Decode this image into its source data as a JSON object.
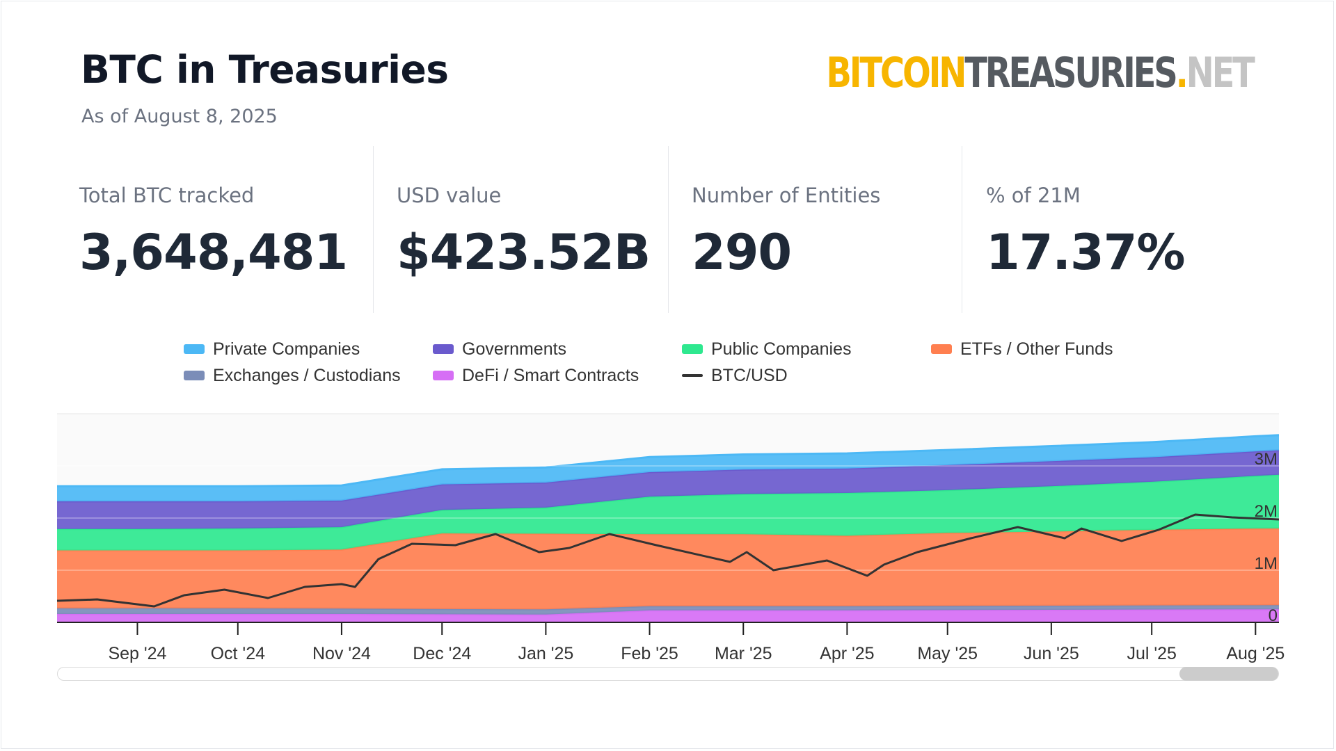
{
  "header": {
    "title": "BTC in Treasuries",
    "subtitle": "As of August 8, 2025",
    "logo": {
      "part1": "BITCOIN",
      "part2": "TREASURIES",
      "part3": ".",
      "part4": "NET"
    }
  },
  "stats": [
    {
      "label": "Total BTC tracked",
      "value": "3,648,481"
    },
    {
      "label": "USD value",
      "value": "$423.52B"
    },
    {
      "label": "Number of Entities",
      "value": "290"
    },
    {
      "label": "% of 21M",
      "value": "17.37%"
    }
  ],
  "legend": [
    {
      "label": "Private Companies",
      "color": "#4cb8f5"
    },
    {
      "label": "Governments",
      "color": "#6a5acd"
    },
    {
      "label": "Public Companies",
      "color": "#2ee88f"
    },
    {
      "label": "ETFs / Other Funds",
      "color": "#ff7f50"
    },
    {
      "label": "Exchanges / Custodians",
      "color": "#7b8db8"
    },
    {
      "label": "DeFi / Smart Contracts",
      "color": "#d66ef5"
    },
    {
      "label": "BTC/USD",
      "color": "#333333"
    }
  ],
  "chart_data": {
    "type": "area",
    "stacked": true,
    "x": [
      "2024-08-08",
      "2024-09-01",
      "2024-10-01",
      "2024-11-01",
      "2024-12-01",
      "2025-01-01",
      "2025-02-01",
      "2025-03-01",
      "2025-04-01",
      "2025-05-01",
      "2025-06-01",
      "2025-07-01",
      "2025-08-01",
      "2025-08-08"
    ],
    "x_tick_labels": [
      "Sep '24",
      "Oct '24",
      "Nov '24",
      "Dec '24",
      "Jan '25",
      "Feb '25",
      "Mar '25",
      "Apr '25",
      "May '25",
      "Jun '25",
      "Jul '25",
      "Aug '25"
    ],
    "y_tick_labels": [
      "0",
      "1M",
      "2M",
      "3M"
    ],
    "ylim": [
      0,
      4000000
    ],
    "series": [
      {
        "name": "DeFi / Smart Contracts",
        "color": "#d66ef5",
        "values": [
          160000,
          160000,
          160000,
          160000,
          155000,
          150000,
          230000,
          230000,
          230000,
          235000,
          240000,
          245000,
          248000,
          250000
        ]
      },
      {
        "name": "Exchanges / Custodians",
        "color": "#7b8db8",
        "values": [
          110000,
          110000,
          110000,
          105000,
          100000,
          100000,
          80000,
          80000,
          80000,
          80000,
          80000,
          80000,
          80000,
          80000
        ]
      },
      {
        "name": "ETFs / Other Funds",
        "color": "#ff7f50",
        "values": [
          1110000,
          1110000,
          1110000,
          1130000,
          1450000,
          1450000,
          1380000,
          1380000,
          1350000,
          1400000,
          1420000,
          1450000,
          1470000,
          1470000
        ]
      },
      {
        "name": "Public Companies",
        "color": "#2ee88f",
        "values": [
          410000,
          410000,
          420000,
          430000,
          450000,
          500000,
          720000,
          770000,
          820000,
          820000,
          870000,
          920000,
          1010000,
          1030000
        ]
      },
      {
        "name": "Governments",
        "color": "#6a5acd",
        "values": [
          530000,
          530000,
          520000,
          510000,
          490000,
          480000,
          470000,
          470000,
          470000,
          480000,
          480000,
          470000,
          470000,
          470000
        ]
      },
      {
        "name": "Private Companies",
        "color": "#4cb8f5",
        "values": [
          290000,
          290000,
          290000,
          290000,
          290000,
          290000,
          290000,
          290000,
          290000,
          290000,
          290000,
          290000,
          290000,
          290000
        ]
      }
    ],
    "btc_usd": {
      "name": "BTC/USD",
      "color": "#333333",
      "x": [
        "2024-08-08",
        "2024-08-20",
        "2024-09-06",
        "2024-09-15",
        "2024-09-27",
        "2024-10-10",
        "2024-10-21",
        "2024-11-01",
        "2024-11-05",
        "2024-11-12",
        "2024-11-22",
        "2024-12-05",
        "2024-12-17",
        "2024-12-30",
        "2025-01-08",
        "2025-01-20",
        "2025-02-03",
        "2025-02-25",
        "2025-03-02",
        "2025-03-10",
        "2025-03-26",
        "2025-04-07",
        "2025-04-12",
        "2025-04-22",
        "2025-05-08",
        "2025-05-22",
        "2025-06-05",
        "2025-06-10",
        "2025-06-22",
        "2025-07-03",
        "2025-07-14",
        "2025-07-25",
        "2025-08-08"
      ],
      "values": [
        58000,
        59000,
        54000,
        62000,
        66000,
        60000,
        68000,
        70000,
        68000,
        88000,
        99000,
        98000,
        106000,
        93000,
        96000,
        106000,
        98000,
        86000,
        93000,
        80000,
        87000,
        76000,
        84000,
        93000,
        103000,
        111000,
        103000,
        110000,
        101000,
        109000,
        120000,
        118000,
        116500
      ]
    }
  }
}
